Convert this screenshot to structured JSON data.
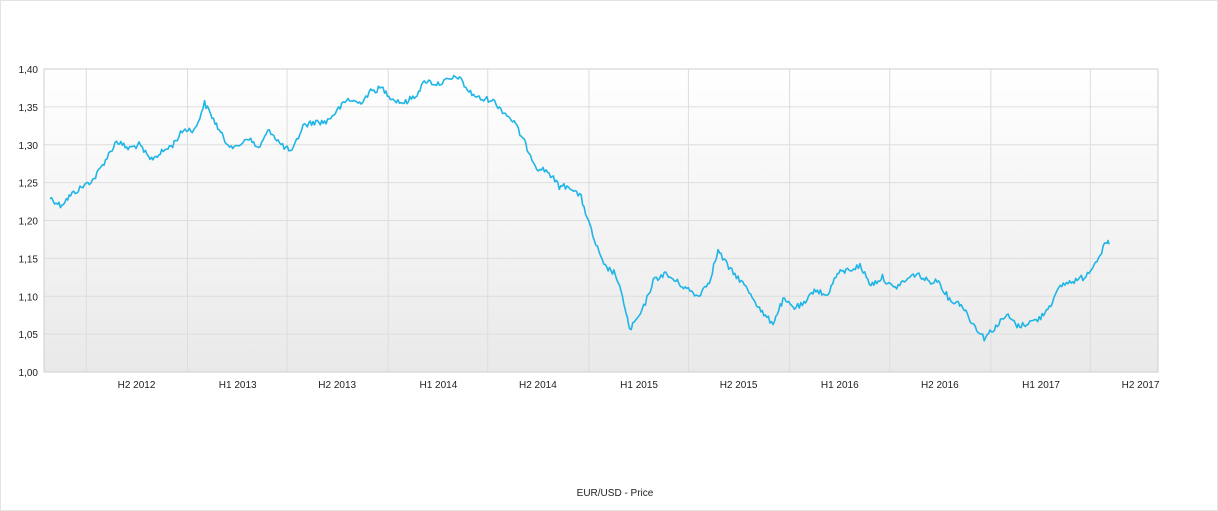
{
  "chart_data": {
    "type": "line",
    "title": "",
    "xlabel": "",
    "ylabel": "",
    "ylim": [
      1.0,
      1.4
    ],
    "y_ticks": [
      "1,00",
      "1,05",
      "1,10",
      "1,15",
      "1,20",
      "1,25",
      "1,30",
      "1,35",
      "1,40"
    ],
    "x_ticks": [
      "H2 2012",
      "H1 2013",
      "H2 2013",
      "H1 2014",
      "H2 2014",
      "H1 2015",
      "H2 2015",
      "H1 2016",
      "H2 2016",
      "H1 2017",
      "H2 2017"
    ],
    "grid": true,
    "legend_position": "bottom-center",
    "line_color": "#1fb5e6",
    "series": [
      {
        "name": "EUR/USD - Price",
        "x": [
          "2012-04-26",
          "2012-05-15",
          "2012-06-05",
          "2012-06-25",
          "2012-07-15",
          "2012-08-05",
          "2012-08-25",
          "2012-09-15",
          "2012-10-05",
          "2012-10-25",
          "2012-11-15",
          "2012-12-05",
          "2012-12-25",
          "2013-01-15",
          "2013-02-01",
          "2013-02-20",
          "2013-03-10",
          "2013-03-30",
          "2013-04-20",
          "2013-05-10",
          "2013-05-30",
          "2013-06-20",
          "2013-07-10",
          "2013-07-30",
          "2013-08-20",
          "2013-09-10",
          "2013-09-30",
          "2013-10-20",
          "2013-11-10",
          "2013-11-30",
          "2013-12-20",
          "2014-01-10",
          "2014-01-30",
          "2014-02-20",
          "2014-03-10",
          "2014-03-30",
          "2014-04-20",
          "2014-05-08",
          "2014-05-28",
          "2014-06-18",
          "2014-07-08",
          "2014-07-28",
          "2014-08-18",
          "2014-09-08",
          "2014-09-28",
          "2014-10-18",
          "2014-11-08",
          "2014-11-28",
          "2014-12-18",
          "2015-01-08",
          "2015-01-28",
          "2015-02-18",
          "2015-03-08",
          "2015-03-16",
          "2015-04-08",
          "2015-04-28",
          "2015-05-18",
          "2015-06-08",
          "2015-06-28",
          "2015-07-18",
          "2015-08-08",
          "2015-08-24",
          "2015-09-15",
          "2015-10-05",
          "2015-10-25",
          "2015-11-15",
          "2015-12-02",
          "2015-12-20",
          "2016-01-10",
          "2016-01-30",
          "2016-02-15",
          "2016-03-08",
          "2016-03-28",
          "2016-04-18",
          "2016-05-08",
          "2016-05-28",
          "2016-06-18",
          "2016-07-08",
          "2016-07-28",
          "2016-08-18",
          "2016-09-08",
          "2016-09-28",
          "2016-10-18",
          "2016-11-08",
          "2016-11-28",
          "2016-12-20",
          "2017-01-10",
          "2017-01-30",
          "2017-02-20",
          "2017-03-10",
          "2017-03-30",
          "2017-04-20",
          "2017-05-10",
          "2017-05-30",
          "2017-06-20",
          "2017-07-10",
          "2017-07-30",
          "2017-08-05"
        ],
        "values": [
          1.23,
          1.22,
          1.235,
          1.245,
          1.255,
          1.28,
          1.305,
          1.295,
          1.3,
          1.28,
          1.29,
          1.3,
          1.32,
          1.32,
          1.355,
          1.33,
          1.305,
          1.295,
          1.31,
          1.295,
          1.32,
          1.3,
          1.29,
          1.325,
          1.33,
          1.33,
          1.345,
          1.36,
          1.355,
          1.37,
          1.375,
          1.36,
          1.355,
          1.365,
          1.385,
          1.38,
          1.385,
          1.39,
          1.37,
          1.36,
          1.36,
          1.345,
          1.33,
          1.3,
          1.27,
          1.265,
          1.245,
          1.245,
          1.23,
          1.18,
          1.14,
          1.13,
          1.085,
          1.055,
          1.08,
          1.12,
          1.13,
          1.12,
          1.11,
          1.1,
          1.12,
          1.16,
          1.135,
          1.12,
          1.1,
          1.075,
          1.065,
          1.095,
          1.085,
          1.09,
          1.11,
          1.1,
          1.13,
          1.135,
          1.14,
          1.115,
          1.125,
          1.11,
          1.12,
          1.13,
          1.12,
          1.12,
          1.095,
          1.09,
          1.065,
          1.045,
          1.06,
          1.075,
          1.06,
          1.065,
          1.07,
          1.09,
          1.115,
          1.12,
          1.125,
          1.145,
          1.17,
          1.17
        ]
      }
    ]
  }
}
